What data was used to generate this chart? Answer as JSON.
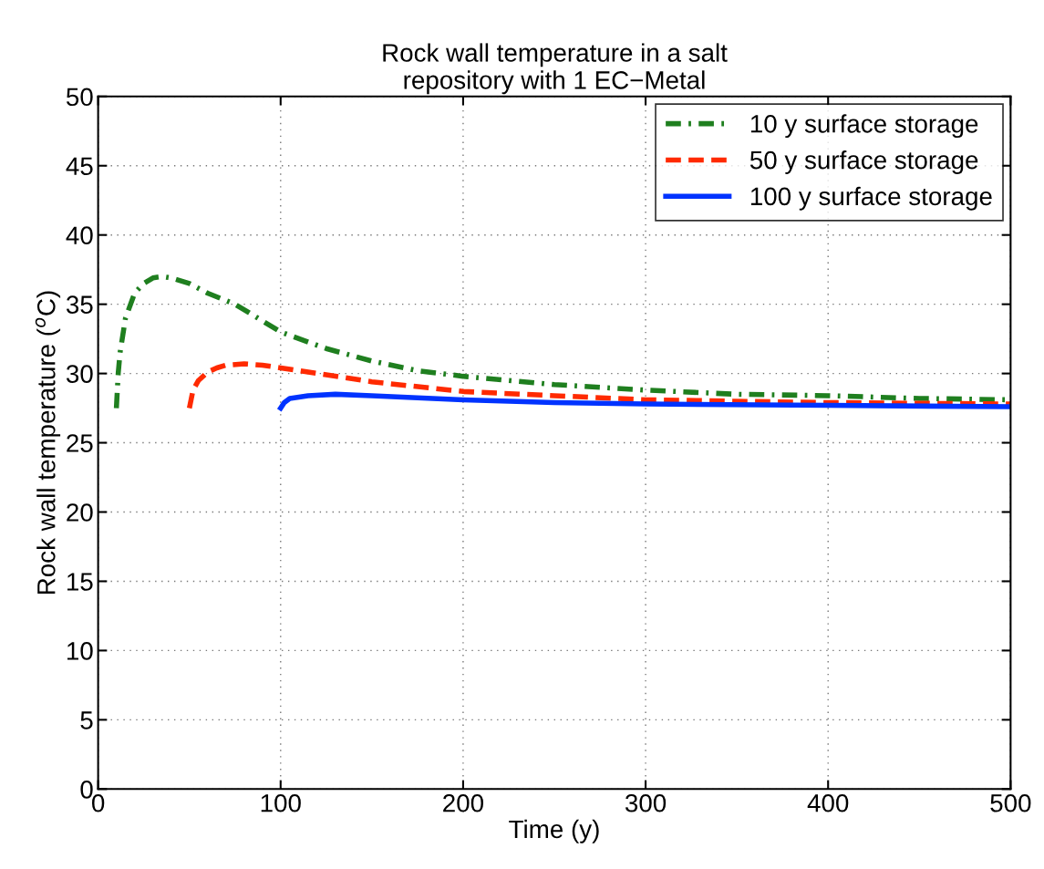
{
  "chart_data": {
    "type": "line",
    "title": "Rock wall temperature in a salt\nrepository with 1 EC−Metal",
    "xlabel": "Time (y)",
    "ylabel": "Rock wall temperature ($^{o}$C)",
    "xlim": [
      0,
      500
    ],
    "xticks": [
      0,
      100,
      200,
      300,
      400,
      500
    ],
    "ylim": [
      0,
      50
    ],
    "yticks": [
      0,
      5,
      10,
      15,
      20,
      25,
      30,
      35,
      40,
      45,
      50
    ],
    "grid": true,
    "legend": "top right",
    "series": [
      {
        "name": "10 y surface storage",
        "color": "#1f7f1f",
        "line_style": "dashdot",
        "x": [
          10,
          11,
          12,
          15,
          20,
          25,
          30,
          35,
          40,
          50,
          60,
          75,
          100,
          125,
          150,
          175,
          200,
          250,
          300,
          350,
          400,
          450,
          500
        ],
        "values": [
          27.5,
          30,
          31.5,
          34,
          35.8,
          36.5,
          36.9,
          37,
          36.9,
          36.5,
          35.8,
          35,
          33,
          31.8,
          30.9,
          30.2,
          29.8,
          29.2,
          28.8,
          28.5,
          28.4,
          28.2,
          28.1
        ]
      },
      {
        "name": "50 y surface storage",
        "color": "#ff2a00",
        "line_style": "dashed",
        "x": [
          50,
          52,
          55,
          60,
          65,
          70,
          80,
          90,
          100,
          125,
          150,
          200,
          250,
          300,
          400,
          500
        ],
        "values": [
          27.5,
          28.8,
          29.5,
          30.1,
          30.4,
          30.6,
          30.7,
          30.6,
          30.4,
          29.9,
          29.4,
          28.7,
          28.4,
          28.1,
          27.9,
          27.8
        ]
      },
      {
        "name": "100 y surface storage",
        "color": "#0033ff",
        "line_style": "solid",
        "x": [
          100,
          102,
          105,
          110,
          115,
          130,
          150,
          200,
          250,
          300,
          400,
          500
        ],
        "values": [
          27.5,
          27.9,
          28.2,
          28.3,
          28.4,
          28.5,
          28.4,
          28.1,
          27.9,
          27.8,
          27.7,
          27.6
        ]
      }
    ]
  }
}
